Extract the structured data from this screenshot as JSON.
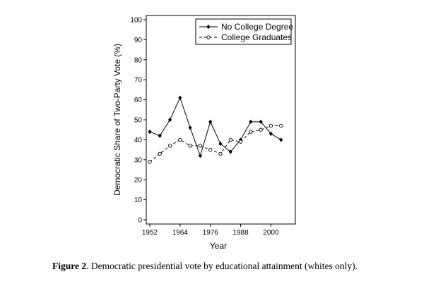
{
  "caption": {
    "label": "Figure 2",
    "text": ". Democratic presidential vote by educational attainment (whites only)."
  },
  "chart_data": {
    "type": "line",
    "xlabel": "Year",
    "ylabel": "Democratic Share of Two-Party Vote (%)",
    "xlim": [
      1952,
      2008
    ],
    "ylim": [
      0,
      100
    ],
    "xticks": [
      1952,
      1964,
      1976,
      1988,
      2000
    ],
    "yticks": [
      0,
      10,
      20,
      30,
      40,
      50,
      60,
      70,
      80,
      90,
      100
    ],
    "legend_position": "top-right",
    "x": [
      1952,
      1956,
      1960,
      1964,
      1968,
      1972,
      1976,
      1980,
      1984,
      1988,
      1992,
      1996,
      2000,
      2004
    ],
    "series": [
      {
        "name": "No College Degree",
        "marker": "filled-diamond",
        "line": "solid",
        "values": [
          44,
          42,
          50,
          61,
          46,
          32,
          49,
          38,
          34,
          40,
          49,
          49,
          43,
          40
        ]
      },
      {
        "name": "College Graduates",
        "marker": "hollow-circle",
        "line": "dashed",
        "values": [
          29,
          33,
          37,
          40,
          37,
          37,
          35,
          33,
          40,
          39,
          44,
          45,
          47,
          47
        ]
      }
    ]
  }
}
